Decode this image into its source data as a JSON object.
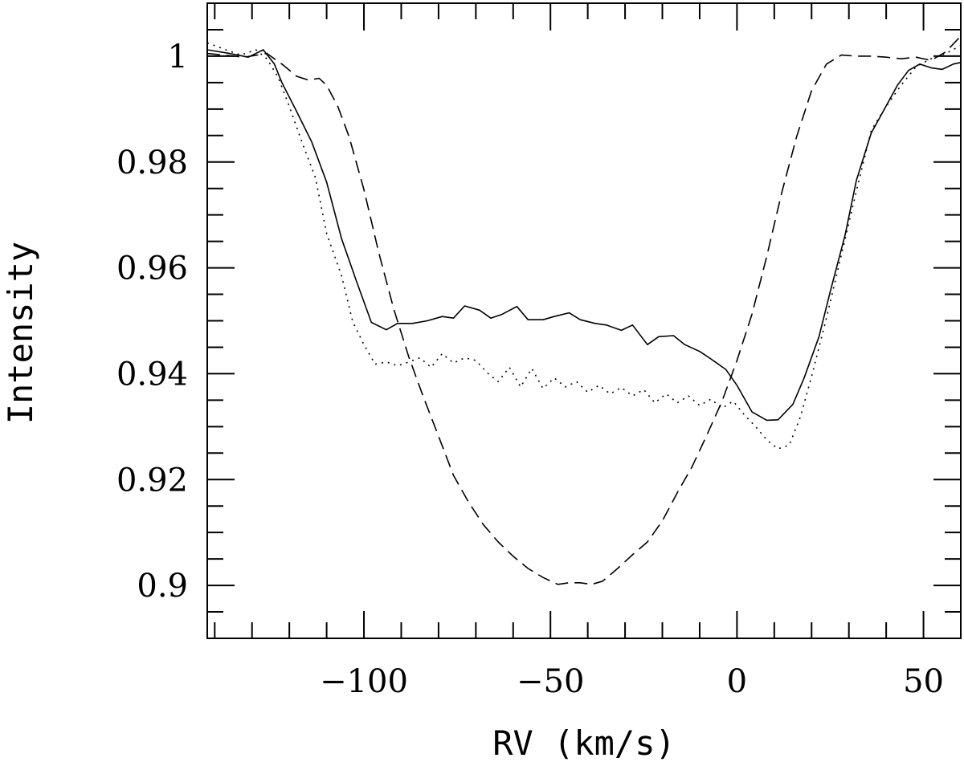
{
  "chart_data": {
    "type": "line",
    "xlabel": "RV (km/s)",
    "ylabel": "Intensity",
    "xlim": [
      -142,
      60
    ],
    "ylim": [
      0.89,
      1.01
    ],
    "x_ticks": [
      -100,
      -50,
      0,
      50
    ],
    "x_tick_labels": [
      "−100",
      "−50",
      "0",
      "50"
    ],
    "y_ticks": [
      0.9,
      0.92,
      0.94,
      0.96,
      0.98,
      1.0
    ],
    "y_tick_labels": [
      "0.9",
      "0.92",
      "0.94",
      "0.96",
      "0.98",
      "1"
    ],
    "x_minor_step": 10,
    "y_minor_step": 0.005,
    "series": [
      {
        "style": "solid",
        "x": [
          -142,
          -136,
          -131,
          -127,
          -124,
          -122,
          -118,
          -114,
          -110,
          -106,
          -102,
          -98,
          -94,
          -91,
          -87,
          -83,
          -79,
          -76,
          -73,
          -69,
          -66,
          -63,
          -59,
          -56,
          -52,
          -49,
          -45,
          -42,
          -38,
          -35,
          -31,
          -28,
          -24,
          -21,
          -17,
          -14,
          -10,
          -7,
          -3,
          0,
          4,
          8,
          11,
          15,
          18,
          22,
          25,
          29,
          32,
          36,
          39,
          43,
          46,
          49,
          52,
          55,
          58,
          60
        ],
        "y": [
          1.0012,
          1.0005,
          0.9998,
          1.0012,
          0.9985,
          0.995,
          0.9895,
          0.9838,
          0.9762,
          0.9655,
          0.9575,
          0.9497,
          0.9483,
          0.9495,
          0.9495,
          0.95,
          0.9508,
          0.9505,
          0.9528,
          0.952,
          0.9505,
          0.9512,
          0.9527,
          0.9502,
          0.9502,
          0.9508,
          0.9515,
          0.9502,
          0.9495,
          0.9492,
          0.9482,
          0.9492,
          0.9455,
          0.947,
          0.9472,
          0.9455,
          0.9442,
          0.9428,
          0.9408,
          0.9378,
          0.9328,
          0.9312,
          0.9313,
          0.9342,
          0.9392,
          0.947,
          0.9555,
          0.9662,
          0.9765,
          0.9855,
          0.9893,
          0.9945,
          0.9973,
          0.9985,
          0.9978,
          0.9975,
          0.9985,
          0.9988
        ]
      },
      {
        "style": "dotted",
        "x": [
          -142,
          -137,
          -133,
          -129,
          -126,
          -123,
          -120,
          -117,
          -113,
          -110,
          -106,
          -103,
          -100,
          -97,
          -94,
          -91,
          -88,
          -85,
          -82,
          -79,
          -76,
          -73,
          -70,
          -67,
          -64,
          -61,
          -58,
          -55,
          -52,
          -49,
          -46,
          -43,
          -40,
          -37,
          -34,
          -31,
          -28,
          -25,
          -22,
          -19,
          -16,
          -13,
          -10,
          -7,
          -4,
          -1,
          2,
          5,
          8,
          11,
          14,
          17,
          20,
          24,
          28,
          32,
          36,
          40,
          44,
          48,
          52,
          56,
          60
        ],
        "y": [
          1.0025,
          1.0012,
          1.0002,
          1.0012,
          0.9995,
          0.996,
          0.9905,
          0.9845,
          0.977,
          0.9665,
          0.9585,
          0.9498,
          0.9455,
          0.9418,
          0.9422,
          0.9415,
          0.9422,
          0.943,
          0.9412,
          0.9438,
          0.942,
          0.943,
          0.9425,
          0.9402,
          0.9385,
          0.9412,
          0.9375,
          0.941,
          0.9372,
          0.9392,
          0.9375,
          0.9385,
          0.9365,
          0.9378,
          0.9362,
          0.9374,
          0.9358,
          0.937,
          0.9345,
          0.9362,
          0.9345,
          0.9358,
          0.934,
          0.9352,
          0.9335,
          0.9348,
          0.9322,
          0.93,
          0.9275,
          0.9258,
          0.9265,
          0.9318,
          0.9395,
          0.9505,
          0.9625,
          0.9745,
          0.986,
          0.9905,
          0.9945,
          0.998,
          0.9995,
          1.0005,
          1.002
        ]
      },
      {
        "style": "dashed",
        "x": [
          -142,
          -132,
          -126,
          -122,
          -118,
          -115,
          -112,
          -110,
          -107,
          -104,
          -100,
          -96,
          -92,
          -88,
          -84,
          -80,
          -76,
          -72,
          -68,
          -64,
          -60,
          -56,
          -52,
          -48,
          -45,
          -42,
          -39,
          -36,
          -32,
          -28,
          -24,
          -20,
          -16,
          -12,
          -8,
          -4,
          0,
          4,
          8,
          12,
          16,
          20,
          24,
          28,
          32,
          36,
          40,
          44,
          48,
          52,
          56,
          60
        ],
        "y": [
          1.0005,
          0.9998,
          1.0005,
          0.9985,
          0.9962,
          0.9955,
          0.9958,
          0.9945,
          0.9905,
          0.9848,
          0.9748,
          0.9628,
          0.9522,
          0.9432,
          0.9355,
          0.9282,
          0.9208,
          0.9158,
          0.9115,
          0.9082,
          0.9055,
          0.9032,
          0.9015,
          0.9002,
          0.9005,
          0.9005,
          0.9002,
          0.9008,
          0.9032,
          0.9058,
          0.9082,
          0.9122,
          0.9175,
          0.9225,
          0.9285,
          0.9348,
          0.9425,
          0.9512,
          0.9622,
          0.9742,
          0.9848,
          0.9935,
          0.9985,
          1.0002,
          1.0,
          1.0,
          0.9998,
          0.9995,
          0.9998,
          0.9992,
          1.0008,
          1.0038
        ]
      }
    ]
  }
}
